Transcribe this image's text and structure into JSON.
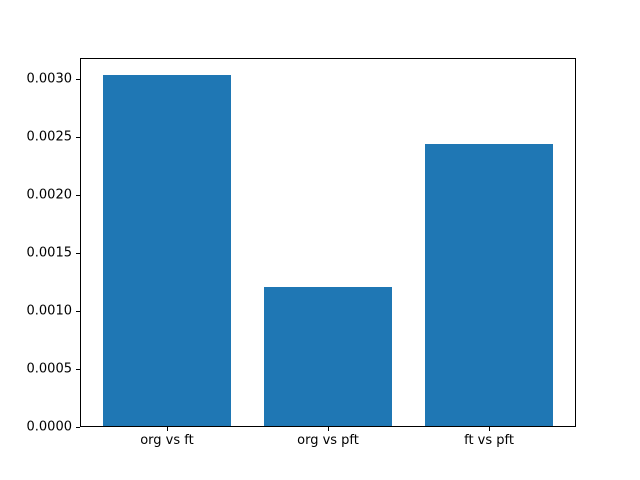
{
  "chart_data": {
    "type": "bar",
    "title": "",
    "xlabel": "",
    "ylabel": "",
    "categories": [
      "org vs ft",
      "org vs pft",
      "ft vs pft"
    ],
    "values": [
      0.00303,
      0.0012,
      0.00243
    ],
    "bar_color": "#1f77b4",
    "background_color": "#ffffff",
    "spine_color": "#000000",
    "bar_width": 0.8,
    "xlim": [
      -0.54,
      2.54
    ],
    "ylim": [
      0,
      0.0031815
    ],
    "ytick_labels": [
      "0.0000",
      "0.0005",
      "0.0010",
      "0.0015",
      "0.0020",
      "0.0025",
      "0.0030"
    ],
    "grid": false,
    "legend": false
  }
}
